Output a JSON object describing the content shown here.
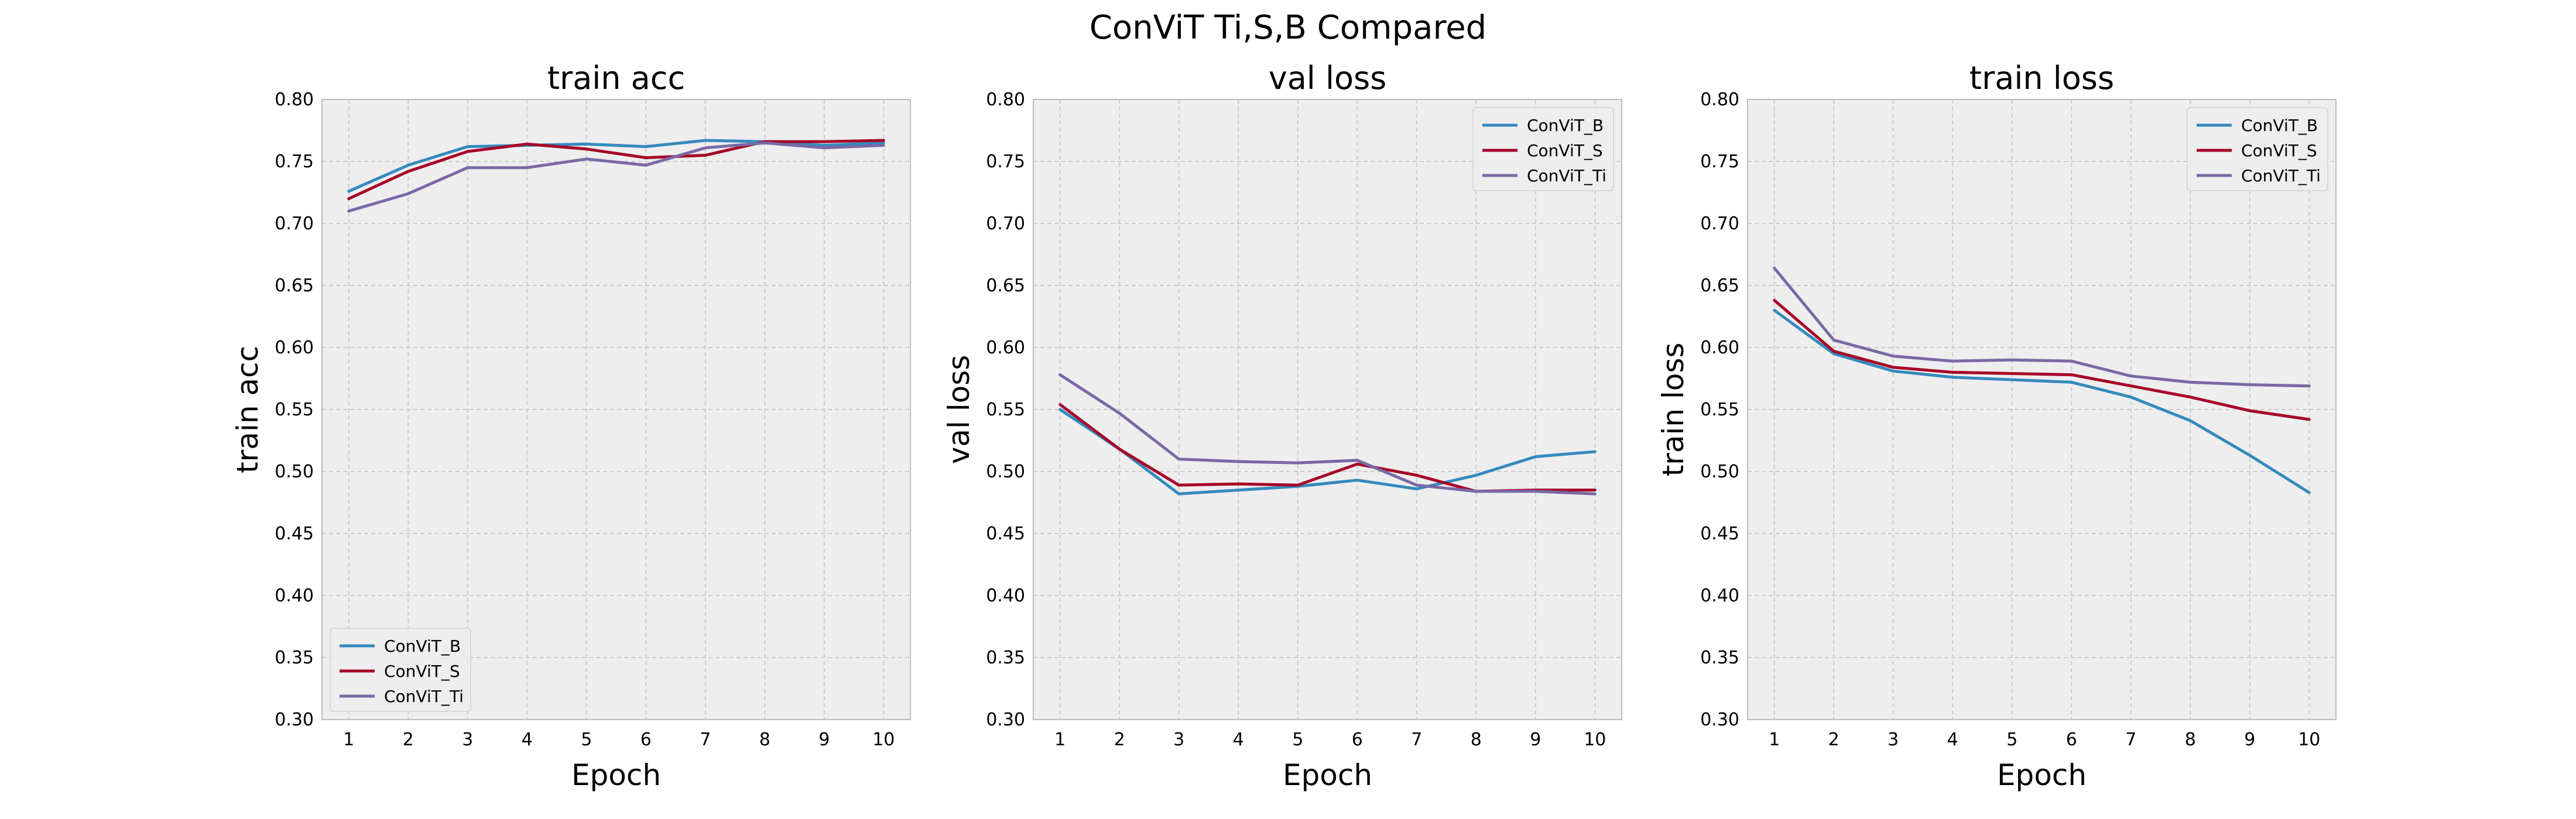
{
  "suptitle": "ConViT Ti,S,B Compared",
  "colors": {
    "ConViT_B": "#348ABD",
    "ConViT_S": "#A60628",
    "ConViT_Ti": "#7A68A6",
    "axes_bg": "#EEEEEE",
    "grid": "#CCCCCC",
    "spine": "#BCBCBC"
  },
  "chart_data": [
    {
      "type": "line",
      "title": "train acc",
      "xlabel": "Epoch",
      "ylabel": "train acc",
      "x": [
        1,
        2,
        3,
        4,
        5,
        6,
        7,
        8,
        9,
        10
      ],
      "xlim": [
        0.55,
        10.45
      ],
      "ylim": [
        0.3,
        0.8
      ],
      "yticks": [
        "0.30",
        "0.35",
        "0.40",
        "0.45",
        "0.50",
        "0.55",
        "0.60",
        "0.65",
        "0.70",
        "0.75",
        "0.80"
      ],
      "grid": true,
      "legend": "lower-left",
      "series": [
        {
          "name": "ConViT_B",
          "values": [
            0.726,
            0.747,
            0.762,
            0.763,
            0.764,
            0.762,
            0.767,
            0.766,
            0.763,
            0.765
          ]
        },
        {
          "name": "ConViT_S",
          "values": [
            0.72,
            0.742,
            0.758,
            0.764,
            0.76,
            0.753,
            0.755,
            0.766,
            0.766,
            0.767
          ]
        },
        {
          "name": "ConViT_Ti",
          "values": [
            0.71,
            0.724,
            0.745,
            0.745,
            0.752,
            0.747,
            0.761,
            0.765,
            0.761,
            0.763
          ]
        }
      ]
    },
    {
      "type": "line",
      "title": "val loss",
      "xlabel": "Epoch",
      "ylabel": "val loss",
      "x": [
        1,
        2,
        3,
        4,
        5,
        6,
        7,
        8,
        9,
        10
      ],
      "xlim": [
        0.55,
        10.45
      ],
      "ylim": [
        0.3,
        0.8
      ],
      "yticks": [
        "0.30",
        "0.35",
        "0.40",
        "0.45",
        "0.50",
        "0.55",
        "0.60",
        "0.65",
        "0.70",
        "0.75",
        "0.80"
      ],
      "grid": true,
      "legend": "upper-right",
      "series": [
        {
          "name": "ConViT_B",
          "values": [
            0.55,
            0.518,
            0.482,
            0.485,
            0.488,
            0.493,
            0.486,
            0.497,
            0.512,
            0.516
          ]
        },
        {
          "name": "ConViT_S",
          "values": [
            0.554,
            0.518,
            0.489,
            0.49,
            0.489,
            0.506,
            0.497,
            0.484,
            0.485,
            0.485
          ]
        },
        {
          "name": "ConViT_Ti",
          "values": [
            0.578,
            0.547,
            0.51,
            0.508,
            0.507,
            0.509,
            0.489,
            0.484,
            0.484,
            0.482
          ]
        }
      ]
    },
    {
      "type": "line",
      "title": "train loss",
      "xlabel": "Epoch",
      "ylabel": "train loss",
      "x": [
        1,
        2,
        3,
        4,
        5,
        6,
        7,
        8,
        9,
        10
      ],
      "xlim": [
        0.55,
        10.45
      ],
      "ylim": [
        0.3,
        0.8
      ],
      "yticks": [
        "0.30",
        "0.35",
        "0.40",
        "0.45",
        "0.50",
        "0.55",
        "0.60",
        "0.65",
        "0.70",
        "0.75",
        "0.80"
      ],
      "grid": true,
      "legend": "upper-right",
      "series": [
        {
          "name": "ConViT_B",
          "values": [
            0.63,
            0.595,
            0.581,
            0.576,
            0.574,
            0.572,
            0.56,
            0.541,
            0.513,
            0.483
          ]
        },
        {
          "name": "ConViT_S",
          "values": [
            0.638,
            0.597,
            0.584,
            0.58,
            0.579,
            0.578,
            0.569,
            0.56,
            0.549,
            0.542
          ]
        },
        {
          "name": "ConViT_Ti",
          "values": [
            0.664,
            0.606,
            0.593,
            0.589,
            0.59,
            0.589,
            0.577,
            0.572,
            0.57,
            0.569
          ]
        }
      ]
    }
  ]
}
